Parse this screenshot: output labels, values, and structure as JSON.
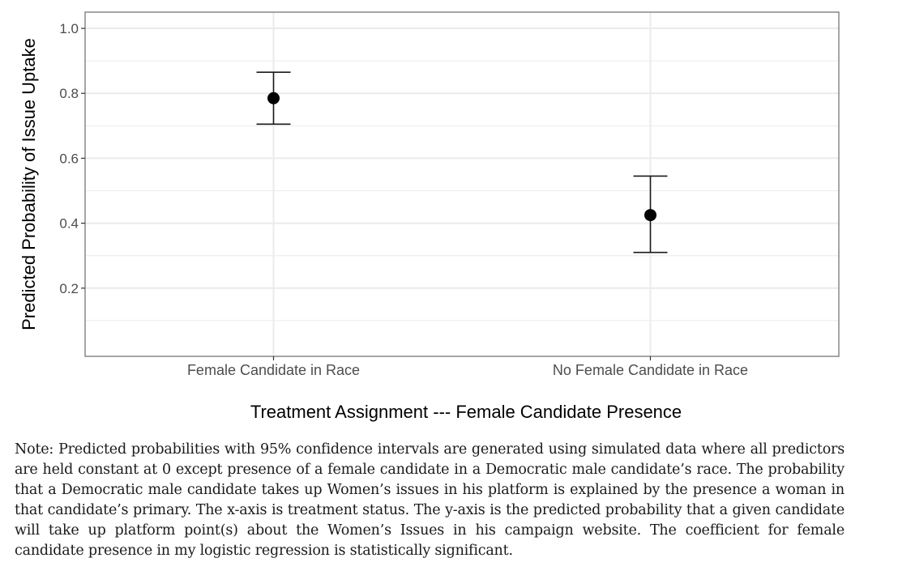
{
  "chart_data": {
    "type": "scatter",
    "title": "",
    "xlabel": "Treatment Assignment --- Female Candidate Presence",
    "ylabel": "Predicted Probability of Issue Uptake",
    "categories": [
      "Female Candidate in Race",
      "No Female Candidate in Race"
    ],
    "series": [
      {
        "values": [
          0.785,
          0.425
        ],
        "ci_lower": [
          0.705,
          0.31
        ],
        "ci_upper": [
          0.865,
          0.545
        ]
      }
    ],
    "yticks": [
      0.2,
      0.4,
      0.6,
      0.8,
      1.0
    ],
    "ytick_labels": [
      "0.2",
      "0.4",
      "0.6",
      "0.8",
      "1.0"
    ],
    "ylim": [
      -0.01,
      1.05
    ],
    "grid": true,
    "legend": "none",
    "colors": {
      "point": "#000000",
      "errorbar": "#1a1a1a",
      "grid": "#ebebeb",
      "panel_border": "#7f7f7f"
    }
  },
  "note": "Note: Predicted probabilities with 95% confidence intervals are generated using simulated data where all predictors are held constant at 0 except presence of a female candidate in a Democratic male candidate’s race. The probability that a Democratic male candidate takes up Women’s issues in his platform is explained by the presence a woman in that candidate’s primary. The x-axis is treatment status. The y-axis is the predicted probability that a given candidate will take up platform point(s) about the Women’s Issues in his campaign website. The coefficient for female candidate presence in my logistic regression is statistically significant."
}
